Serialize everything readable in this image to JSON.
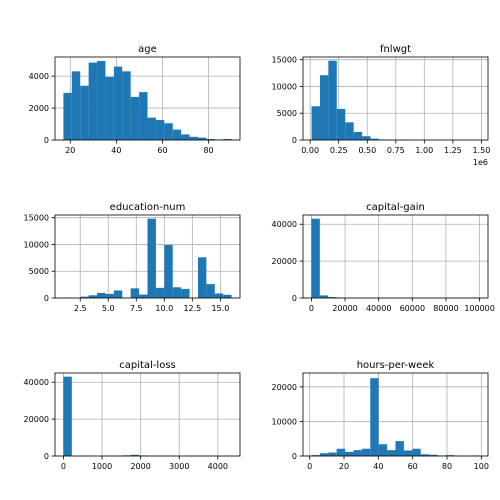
{
  "chart_data": [
    {
      "type": "bar",
      "title": "age",
      "xlim": [
        13.35,
        93.65
      ],
      "ylim": [
        0,
        5200
      ],
      "xticks": [
        20,
        40,
        60,
        80
      ],
      "yticks": [
        0,
        2000,
        4000
      ],
      "bins": [
        {
          "x0": 17.0,
          "x1": 20.65,
          "y": 2950
        },
        {
          "x0": 20.65,
          "x1": 24.3,
          "y": 4300
        },
        {
          "x0": 24.3,
          "x1": 27.95,
          "y": 3400
        },
        {
          "x0": 27.95,
          "x1": 31.6,
          "y": 4850
        },
        {
          "x0": 31.6,
          "x1": 35.25,
          "y": 4950
        },
        {
          "x0": 35.25,
          "x1": 38.9,
          "y": 3950
        },
        {
          "x0": 38.9,
          "x1": 42.55,
          "y": 4600
        },
        {
          "x0": 42.55,
          "x1": 46.2,
          "y": 4300
        },
        {
          "x0": 46.2,
          "x1": 49.85,
          "y": 2700
        },
        {
          "x0": 49.85,
          "x1": 53.5,
          "y": 3000
        },
        {
          "x0": 53.5,
          "x1": 57.15,
          "y": 1400
        },
        {
          "x0": 57.15,
          "x1": 60.8,
          "y": 1250
        },
        {
          "x0": 60.8,
          "x1": 64.45,
          "y": 1050
        },
        {
          "x0": 64.45,
          "x1": 68.1,
          "y": 650
        },
        {
          "x0": 68.1,
          "x1": 71.75,
          "y": 350
        },
        {
          "x0": 71.75,
          "x1": 75.4,
          "y": 200
        },
        {
          "x0": 75.4,
          "x1": 79.05,
          "y": 150
        },
        {
          "x0": 79.05,
          "x1": 82.7,
          "y": 60
        },
        {
          "x0": 82.7,
          "x1": 86.35,
          "y": 30
        },
        {
          "x0": 86.35,
          "x1": 90.0,
          "y": 60
        }
      ]
    },
    {
      "type": "bar",
      "title": "fnlwgt",
      "offset_label": "1e6",
      "xlim": [
        -0.063,
        1.558
      ],
      "ylim": [
        0,
        15500
      ],
      "xticks": [
        0.0,
        0.25,
        0.5,
        0.75,
        1.0,
        1.25,
        1.5
      ],
      "xtick_labels": [
        "0.00",
        "0.25",
        "0.50",
        "0.75",
        "1.00",
        "1.25",
        "1.50"
      ],
      "yticks": [
        0,
        5000,
        10000,
        15000
      ],
      "bins": [
        {
          "x0": 0.012,
          "x1": 0.086,
          "y": 6300
        },
        {
          "x0": 0.086,
          "x1": 0.159,
          "y": 12100
        },
        {
          "x0": 0.159,
          "x1": 0.233,
          "y": 14800
        },
        {
          "x0": 0.233,
          "x1": 0.307,
          "y": 5800
        },
        {
          "x0": 0.307,
          "x1": 0.381,
          "y": 3300
        },
        {
          "x0": 0.381,
          "x1": 0.455,
          "y": 1500
        },
        {
          "x0": 0.455,
          "x1": 0.528,
          "y": 700
        },
        {
          "x0": 0.528,
          "x1": 0.602,
          "y": 250
        },
        {
          "x0": 0.602,
          "x1": 0.676,
          "y": 100
        },
        {
          "x0": 0.676,
          "x1": 0.75,
          "y": 60
        },
        {
          "x0": 0.75,
          "x1": 0.824,
          "y": 30
        },
        {
          "x0": 0.824,
          "x1": 0.897,
          "y": 15
        },
        {
          "x0": 0.897,
          "x1": 0.971,
          "y": 10
        },
        {
          "x0": 0.971,
          "x1": 1.045,
          "y": 8
        },
        {
          "x0": 1.045,
          "x1": 1.119,
          "y": 5
        },
        {
          "x0": 1.119,
          "x1": 1.193,
          "y": 4
        },
        {
          "x0": 1.193,
          "x1": 1.266,
          "y": 3
        },
        {
          "x0": 1.266,
          "x1": 1.34,
          "y": 3
        },
        {
          "x0": 1.34,
          "x1": 1.414,
          "y": 2
        },
        {
          "x0": 1.414,
          "x1": 1.488,
          "y": 2
        }
      ]
    },
    {
      "type": "bar",
      "title": "education-num",
      "xlim": [
        0.25,
        16.75
      ],
      "ylim": [
        0,
        15500
      ],
      "xticks": [
        2.5,
        5.0,
        7.5,
        10.0,
        12.5,
        15.0
      ],
      "xtick_labels": [
        "2.5",
        "5.0",
        "7.5",
        "10.0",
        "12.5",
        "15.0"
      ],
      "yticks": [
        0,
        5000,
        10000,
        15000
      ],
      "bins": [
        {
          "x0": 1.0,
          "x1": 1.75,
          "y": 80
        },
        {
          "x0": 2.5,
          "x1": 3.25,
          "y": 250
        },
        {
          "x0": 3.25,
          "x1": 4.0,
          "y": 500
        },
        {
          "x0": 4.0,
          "x1": 4.75,
          "y": 950
        },
        {
          "x0": 4.75,
          "x1": 5.5,
          "y": 750
        },
        {
          "x0": 5.5,
          "x1": 6.25,
          "y": 1400
        },
        {
          "x0": 7.0,
          "x1": 7.75,
          "y": 1800
        },
        {
          "x0": 7.75,
          "x1": 8.5,
          "y": 650
        },
        {
          "x0": 8.5,
          "x1": 9.25,
          "y": 14800
        },
        {
          "x0": 9.25,
          "x1": 10.0,
          "y": 1900
        },
        {
          "x0": 10.0,
          "x1": 10.75,
          "y": 9900
        },
        {
          "x0": 10.75,
          "x1": 11.5,
          "y": 2000
        },
        {
          "x0": 11.5,
          "x1": 12.25,
          "y": 1700
        },
        {
          "x0": 13.0,
          "x1": 13.75,
          "y": 7600
        },
        {
          "x0": 13.75,
          "x1": 14.5,
          "y": 2600
        },
        {
          "x0": 14.5,
          "x1": 15.25,
          "y": 850
        },
        {
          "x0": 15.25,
          "x1": 16.0,
          "y": 600
        }
      ]
    },
    {
      "type": "bar",
      "title": "capital-gain",
      "xlim": [
        -5000,
        105000
      ],
      "ylim": [
        0,
        45000
      ],
      "xticks": [
        0,
        20000,
        40000,
        60000,
        80000,
        100000
      ],
      "yticks": [
        0,
        20000,
        40000
      ],
      "bins": [
        {
          "x0": 0,
          "x1": 5000,
          "y": 43000
        },
        {
          "x0": 5000,
          "x1": 10000,
          "y": 1400
        },
        {
          "x0": 10000,
          "x1": 15000,
          "y": 500
        },
        {
          "x0": 15000,
          "x1": 20000,
          "y": 250
        },
        {
          "x0": 20000,
          "x1": 25000,
          "y": 60
        },
        {
          "x0": 25000,
          "x1": 30000,
          "y": 40
        },
        {
          "x0": 30000,
          "x1": 35000,
          "y": 20
        },
        {
          "x0": 95000,
          "x1": 100000,
          "y": 200
        }
      ]
    },
    {
      "type": "bar",
      "title": "capital-loss",
      "xlim": [
        -217.8,
        4573.8
      ],
      "ylim": [
        0,
        45000
      ],
      "xticks": [
        0,
        1000,
        2000,
        3000,
        4000
      ],
      "yticks": [
        0,
        20000,
        40000
      ],
      "bins": [
        {
          "x0": 0,
          "x1": 217.8,
          "y": 43000
        },
        {
          "x0": 1306.8,
          "x1": 1524.6,
          "y": 150
        },
        {
          "x0": 1524.6,
          "x1": 1742.4,
          "y": 350
        },
        {
          "x0": 1742.4,
          "x1": 1960.2,
          "y": 650
        },
        {
          "x0": 1960.2,
          "x1": 2178.0,
          "y": 300
        },
        {
          "x0": 2178.0,
          "x1": 2395.8,
          "y": 80
        },
        {
          "x0": 2395.8,
          "x1": 2613.6,
          "y": 40
        }
      ]
    },
    {
      "type": "bar",
      "title": "hours-per-week",
      "xlim": [
        -3.9,
        103.9
      ],
      "ylim": [
        0,
        24000
      ],
      "xticks": [
        0,
        20,
        40,
        60,
        80,
        100
      ],
      "yticks": [
        0,
        10000,
        20000
      ],
      "bins": [
        {
          "x0": 1.0,
          "x1": 5.9,
          "y": 250
        },
        {
          "x0": 5.9,
          "x1": 10.8,
          "y": 800
        },
        {
          "x0": 10.8,
          "x1": 15.7,
          "y": 1000
        },
        {
          "x0": 15.7,
          "x1": 20.6,
          "y": 2100
        },
        {
          "x0": 20.6,
          "x1": 25.5,
          "y": 1200
        },
        {
          "x0": 25.5,
          "x1": 30.4,
          "y": 1700
        },
        {
          "x0": 30.4,
          "x1": 35.3,
          "y": 2100
        },
        {
          "x0": 35.3,
          "x1": 40.2,
          "y": 22500
        },
        {
          "x0": 40.2,
          "x1": 45.1,
          "y": 3400
        },
        {
          "x0": 45.1,
          "x1": 50.0,
          "y": 1700
        },
        {
          "x0": 50.0,
          "x1": 54.9,
          "y": 4300
        },
        {
          "x0": 54.9,
          "x1": 59.8,
          "y": 1600
        },
        {
          "x0": 59.8,
          "x1": 64.7,
          "y": 2100
        },
        {
          "x0": 64.7,
          "x1": 69.6,
          "y": 500
        },
        {
          "x0": 69.6,
          "x1": 74.5,
          "y": 350
        },
        {
          "x0": 74.5,
          "x1": 79.4,
          "y": 150
        },
        {
          "x0": 79.4,
          "x1": 84.3,
          "y": 250
        },
        {
          "x0": 84.3,
          "x1": 89.2,
          "y": 80
        },
        {
          "x0": 89.2,
          "x1": 94.1,
          "y": 60
        },
        {
          "x0": 94.1,
          "x1": 99.0,
          "y": 150
        }
      ]
    }
  ]
}
